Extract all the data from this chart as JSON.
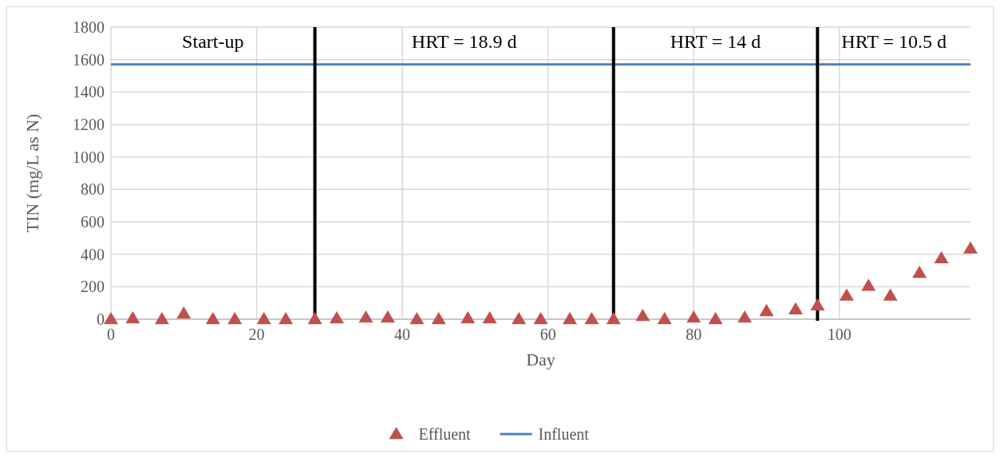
{
  "chart_data": {
    "type": "scatter",
    "xlabel": "Day",
    "ylabel": "TIN (mg/L as N)",
    "xlim": [
      0,
      118
    ],
    "xticks": [
      0,
      20,
      40,
      60,
      80,
      100
    ],
    "ylim": [
      0,
      1800
    ],
    "yticks": [
      0,
      200,
      400,
      600,
      800,
      1000,
      1200,
      1400,
      1600,
      1800
    ],
    "grid": true,
    "legend": "bottom",
    "marker": "triangle",
    "series": [
      {
        "name": "Effluent",
        "color": "#c0504d",
        "x": [
          0,
          3,
          7,
          10,
          14,
          17,
          21,
          24,
          28,
          31,
          35,
          38,
          42,
          45,
          49,
          52,
          56,
          59,
          63,
          66,
          69,
          73,
          76,
          80,
          83,
          87,
          90,
          94,
          97,
          101,
          104,
          107,
          111,
          114,
          118
        ],
        "values": [
          0,
          5,
          0,
          35,
          0,
          0,
          0,
          0,
          0,
          5,
          10,
          10,
          0,
          0,
          5,
          5,
          0,
          0,
          0,
          0,
          0,
          20,
          0,
          10,
          0,
          10,
          50,
          60,
          85,
          145,
          205,
          145,
          285,
          375,
          435
        ]
      },
      {
        "name": "Influent",
        "type": "line",
        "color": "#4f81bd",
        "marker": "none",
        "x": [
          0,
          118
        ],
        "values": [
          1570,
          1570
        ]
      }
    ],
    "ref_lines": [
      {
        "axis": "x",
        "value": 28,
        "color": "#000000"
      },
      {
        "axis": "x",
        "value": 69,
        "color": "#000000"
      },
      {
        "axis": "x",
        "value": 97,
        "color": "#000000"
      }
    ],
    "annotations": [
      "Start-up",
      "HRT = 18.9 d",
      "HRT = 14 d",
      "HRT = 10.5 d"
    ]
  }
}
